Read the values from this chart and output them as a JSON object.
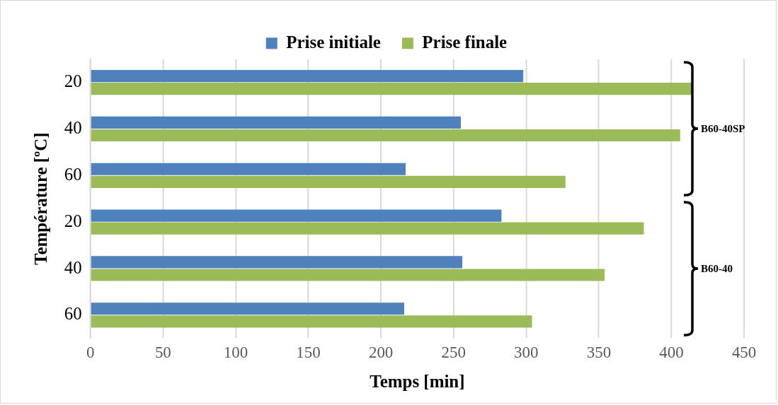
{
  "chart_data": {
    "type": "bar",
    "orientation": "horizontal",
    "xlabel": "Temps [min]",
    "ylabel": "Température [ºC]",
    "categories": [
      "20",
      "40",
      "60",
      "20",
      "40",
      "60"
    ],
    "series": [
      {
        "name": "Prise initiale",
        "color": "#4f81bd",
        "values": [
          298,
          255,
          217,
          283,
          256,
          216
        ]
      },
      {
        "name": "Prise finale",
        "color": "#9bbb59",
        "values": [
          414,
          406,
          327,
          381,
          354,
          304
        ]
      }
    ],
    "xlim": [
      0,
      450
    ],
    "xticks": [
      0,
      50,
      100,
      150,
      200,
      250,
      300,
      350,
      400,
      450
    ],
    "grid": "x",
    "legend": "top",
    "annotations": [
      "B60-40SP",
      "B60-40"
    ]
  }
}
